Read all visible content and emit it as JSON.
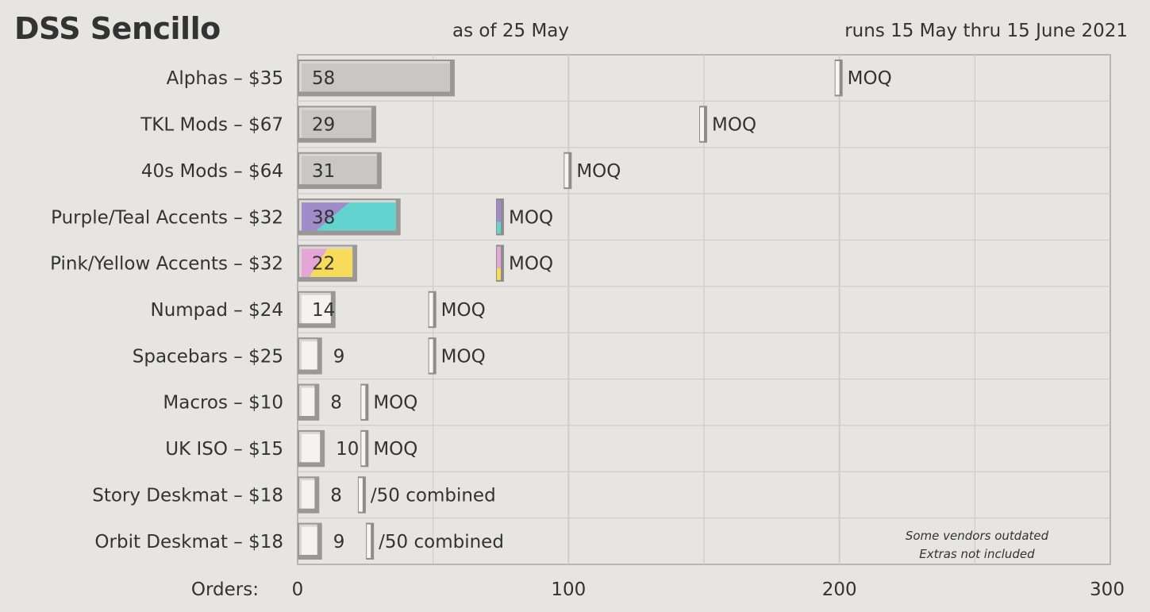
{
  "header": {
    "title": "DSS Sencillo",
    "as_of": "as of 25 May",
    "runs": "runs 15 May thru 15 June 2021"
  },
  "chart_data": {
    "type": "bar",
    "orientation": "horizontal",
    "xlabel": "Orders:",
    "xlim": [
      0,
      300
    ],
    "xticks": [
      0,
      100,
      200,
      300
    ],
    "grid": true,
    "categories": [
      "Alphas – $35",
      "TKL Mods – $67",
      "40s Mods – $64",
      "Purple/Teal Accents – $32",
      "Pink/Yellow Accents – $32",
      "Numpad – $24",
      "Spacebars – $25",
      "Macros – $10",
      "UK ISO – $15",
      "Story Deskmat – $18",
      "Orbit Deskmat – $18"
    ],
    "values": [
      58,
      29,
      31,
      38,
      22,
      14,
      9,
      8,
      10,
      8,
      9
    ],
    "value_labels": [
      "58",
      "29",
      "31",
      "38",
      "22",
      "14",
      "9",
      "8",
      "10",
      "8",
      "9"
    ],
    "moq": [
      200,
      150,
      100,
      75,
      75,
      50,
      50,
      25,
      25,
      24,
      27
    ],
    "moq_labels": [
      "MOQ",
      "MOQ",
      "MOQ",
      "MOQ",
      "MOQ",
      "MOQ",
      "MOQ",
      "MOQ",
      "MOQ",
      "/50 combined",
      "/50 combined"
    ],
    "styles": [
      "gray",
      "gray",
      "gray",
      "purple-teal",
      "pink-yellow",
      "white",
      "white",
      "white",
      "white",
      "white",
      "white"
    ],
    "colors": {
      "gray": "#c9c7c4",
      "white": "#f4f3f1",
      "purple": "#a08cc8",
      "teal": "#63d3cf",
      "pink": "#e3a6d6",
      "yellow": "#f7dc5c"
    },
    "notes": [
      "Some vendors outdated",
      "Extras not included"
    ]
  }
}
